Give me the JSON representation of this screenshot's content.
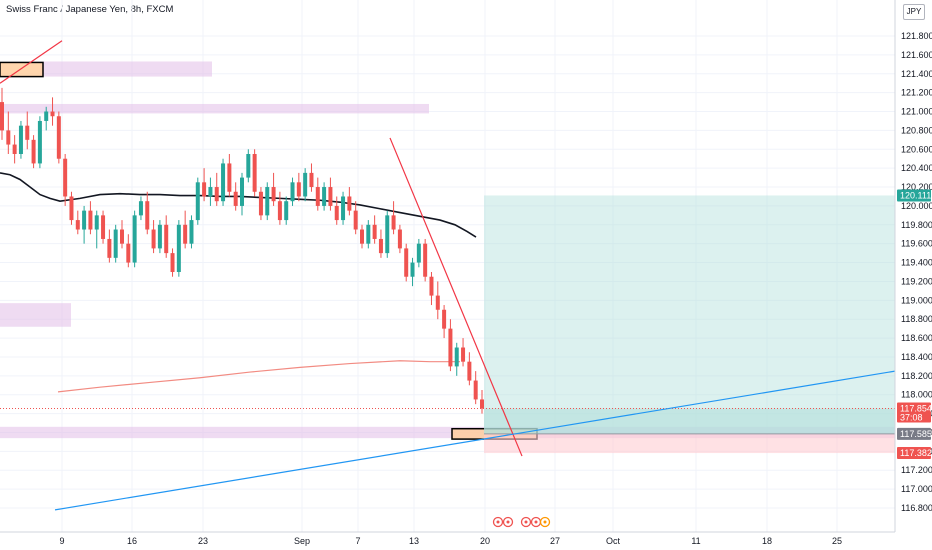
{
  "header": {
    "title": "Swiss Franc / Japanese Yen, 8h, FXCM"
  },
  "currency_badge": "JPY",
  "colors": {
    "up": "#26a69a",
    "down": "#ef5350",
    "ma_long": "#131722",
    "ma_red": "#f28b82",
    "trendline_red": "#f23645",
    "trendline_blue": "#2196f3",
    "zone_purple": "#e1bee7",
    "zone_orange": "#ffcc99",
    "target_zone": "#b2dfdb",
    "stop_zone": "#ffcdd2"
  },
  "chart_data": {
    "type": "candlestick",
    "title": "Swiss Franc / Japanese Yen, 8h, FXCM",
    "ylim": [
      116.7,
      122.0
    ],
    "y_ticks": [
      "121.800",
      "121.600",
      "121.400",
      "121.200",
      "121.000",
      "120.800",
      "120.600",
      "120.400",
      "120.200",
      "120.000",
      "119.800",
      "119.600",
      "119.400",
      "119.200",
      "119.000",
      "118.800",
      "118.600",
      "118.400",
      "118.200",
      "118.000",
      "117.800",
      "117.600",
      "117.400",
      "117.200",
      "117.000",
      "116.800"
    ],
    "x_ticks": [
      "9",
      "16",
      "23",
      "Sep",
      "7",
      "13",
      "20",
      "27",
      "Oct",
      "11",
      "18",
      "25"
    ],
    "price_labels": [
      {
        "text": "120.111",
        "value": 120.111,
        "color": "#26a69a"
      },
      {
        "text": "117.854",
        "value": 117.854,
        "color": "#ef5350",
        "sub": "37:08"
      },
      {
        "text": "117.585",
        "value": 117.585,
        "color": "#787b86"
      },
      {
        "text": "117.382",
        "value": 117.382,
        "color": "#ef5350"
      }
    ],
    "candles": [
      [
        121.1,
        121.25,
        120.7,
        120.8
      ],
      [
        120.8,
        121.0,
        120.55,
        120.65
      ],
      [
        120.65,
        120.75,
        120.45,
        120.55
      ],
      [
        120.55,
        120.9,
        120.5,
        120.85
      ],
      [
        120.85,
        121.0,
        120.6,
        120.7
      ],
      [
        120.7,
        120.75,
        120.4,
        120.45
      ],
      [
        120.45,
        120.95,
        120.4,
        120.9
      ],
      [
        120.9,
        121.05,
        120.8,
        121.0
      ],
      [
        121.0,
        121.15,
        120.85,
        120.95
      ],
      [
        120.95,
        121.0,
        120.45,
        120.5
      ],
      [
        120.5,
        120.55,
        120.0,
        120.1
      ],
      [
        120.1,
        120.15,
        119.8,
        119.85
      ],
      [
        119.85,
        119.95,
        119.7,
        119.75
      ],
      [
        119.75,
        120.0,
        119.6,
        119.95
      ],
      [
        119.95,
        120.05,
        119.7,
        119.75
      ],
      [
        119.75,
        119.95,
        119.55,
        119.9
      ],
      [
        119.9,
        119.95,
        119.6,
        119.65
      ],
      [
        119.65,
        119.75,
        119.4,
        119.45
      ],
      [
        119.45,
        119.8,
        119.4,
        119.75
      ],
      [
        119.75,
        119.85,
        119.55,
        119.6
      ],
      [
        119.6,
        119.7,
        119.35,
        119.4
      ],
      [
        119.4,
        119.95,
        119.35,
        119.9
      ],
      [
        119.9,
        120.1,
        119.85,
        120.05
      ],
      [
        120.05,
        120.15,
        119.7,
        119.75
      ],
      [
        119.75,
        119.85,
        119.5,
        119.55
      ],
      [
        119.55,
        119.85,
        119.5,
        119.8
      ],
      [
        119.8,
        119.9,
        119.45,
        119.5
      ],
      [
        119.5,
        119.55,
        119.25,
        119.3
      ],
      [
        119.3,
        119.85,
        119.25,
        119.8
      ],
      [
        119.8,
        119.95,
        119.55,
        119.6
      ],
      [
        119.6,
        119.9,
        119.55,
        119.85
      ],
      [
        119.85,
        120.3,
        119.8,
        120.25
      ],
      [
        120.25,
        120.4,
        120.05,
        120.1
      ],
      [
        120.1,
        120.3,
        120.0,
        120.2
      ],
      [
        120.2,
        120.35,
        120.0,
        120.05
      ],
      [
        120.05,
        120.5,
        120.0,
        120.45
      ],
      [
        120.45,
        120.55,
        120.1,
        120.15
      ],
      [
        120.15,
        120.25,
        119.95,
        120.0
      ],
      [
        120.0,
        120.35,
        119.9,
        120.3
      ],
      [
        120.3,
        120.6,
        120.25,
        120.55
      ],
      [
        120.55,
        120.6,
        120.1,
        120.15
      ],
      [
        120.15,
        120.2,
        119.85,
        119.9
      ],
      [
        119.9,
        120.25,
        119.85,
        120.2
      ],
      [
        120.2,
        120.35,
        120.0,
        120.05
      ],
      [
        120.05,
        120.15,
        119.8,
        119.85
      ],
      [
        119.85,
        120.1,
        119.8,
        120.05
      ],
      [
        120.05,
        120.3,
        120.0,
        120.25
      ],
      [
        120.25,
        120.35,
        120.05,
        120.1
      ],
      [
        120.1,
        120.4,
        120.05,
        120.35
      ],
      [
        120.35,
        120.45,
        120.15,
        120.2
      ],
      [
        120.2,
        120.3,
        119.95,
        120.0
      ],
      [
        120.0,
        120.25,
        119.95,
        120.2
      ],
      [
        120.2,
        120.3,
        119.95,
        120.0
      ],
      [
        120.0,
        120.1,
        119.8,
        119.85
      ],
      [
        119.85,
        120.15,
        119.8,
        120.1
      ],
      [
        120.1,
        120.2,
        119.9,
        119.95
      ],
      [
        119.95,
        120.05,
        119.7,
        119.75
      ],
      [
        119.75,
        119.8,
        119.55,
        119.6
      ],
      [
        119.6,
        119.85,
        119.55,
        119.8
      ],
      [
        119.8,
        119.9,
        119.6,
        119.65
      ],
      [
        119.65,
        119.75,
        119.45,
        119.5
      ],
      [
        119.5,
        119.95,
        119.45,
        119.9
      ],
      [
        119.9,
        120.05,
        119.7,
        119.75
      ],
      [
        119.75,
        119.8,
        119.5,
        119.55
      ],
      [
        119.55,
        119.6,
        119.2,
        119.25
      ],
      [
        119.25,
        119.45,
        119.15,
        119.4
      ],
      [
        119.4,
        119.65,
        119.35,
        119.6
      ],
      [
        119.6,
        119.65,
        119.2,
        119.25
      ],
      [
        119.25,
        119.3,
        118.95,
        119.05
      ],
      [
        119.05,
        119.2,
        118.8,
        118.9
      ],
      [
        118.9,
        118.95,
        118.6,
        118.7
      ],
      [
        118.7,
        118.8,
        118.25,
        118.3
      ],
      [
        118.3,
        118.55,
        118.2,
        118.5
      ],
      [
        118.5,
        118.6,
        118.3,
        118.35
      ],
      [
        118.35,
        118.45,
        118.1,
        118.15
      ],
      [
        118.15,
        118.25,
        117.9,
        117.95
      ],
      [
        117.95,
        118.05,
        117.8,
        117.854
      ]
    ],
    "ma_long": [
      [
        0,
        120.35
      ],
      [
        10,
        120.33
      ],
      [
        20,
        120.28
      ],
      [
        30,
        120.2
      ],
      [
        40,
        120.12
      ],
      [
        50,
        120.08
      ],
      [
        60,
        120.05
      ],
      [
        80,
        120.08
      ],
      [
        100,
        120.12
      ],
      [
        120,
        120.13
      ],
      [
        140,
        120.12
      ],
      [
        160,
        120.12
      ],
      [
        180,
        120.11
      ],
      [
        200,
        120.11
      ],
      [
        220,
        120.1
      ],
      [
        240,
        120.1
      ],
      [
        260,
        120.09
      ],
      [
        280,
        120.08
      ],
      [
        300,
        120.07
      ],
      [
        320,
        120.06
      ],
      [
        340,
        120.04
      ],
      [
        360,
        120.01
      ],
      [
        380,
        119.97
      ],
      [
        400,
        119.93
      ],
      [
        420,
        119.89
      ],
      [
        440,
        119.85
      ],
      [
        455,
        119.8
      ],
      [
        467,
        119.73
      ],
      [
        476,
        119.67
      ]
    ],
    "ma_red": [
      [
        58,
        118.03
      ],
      [
        100,
        118.08
      ],
      [
        150,
        118.13
      ],
      [
        200,
        118.18
      ],
      [
        250,
        118.24
      ],
      [
        300,
        118.29
      ],
      [
        350,
        118.33
      ],
      [
        400,
        118.36
      ],
      [
        430,
        118.35
      ],
      [
        460,
        118.35
      ]
    ],
    "zones": [
      {
        "kind": "purple",
        "x0": 40,
        "x1": 212,
        "y0": 121.53,
        "y1": 121.37
      },
      {
        "kind": "purple",
        "x0": 0,
        "x1": 429,
        "y0": 121.08,
        "y1": 120.98
      },
      {
        "kind": "purple",
        "x0": 0,
        "x1": 71,
        "y0": 118.97,
        "y1": 118.72
      },
      {
        "kind": "purple",
        "x0": 0,
        "x1": 895,
        "y0": 117.66,
        "y1": 117.54
      },
      {
        "kind": "orange",
        "x0": 0,
        "x1": 43,
        "y0": 121.52,
        "y1": 121.37
      },
      {
        "kind": "orange",
        "x0": 452,
        "x1": 537,
        "y0": 117.64,
        "y1": 117.53
      }
    ],
    "position": {
      "x0": 484,
      "x1": 895,
      "entry": 117.585,
      "target": 120.111,
      "stop": 117.382
    },
    "trendlines": [
      {
        "color": "red",
        "x0": 390,
        "v0": 120.72,
        "x1": 522,
        "v1": 117.35
      },
      {
        "color": "red",
        "x0": 0,
        "v0": 121.3,
        "x1": 62,
        "v1": 121.75
      },
      {
        "color": "blue",
        "x0": 55,
        "v0": 116.78,
        "x1": 895,
        "v1": 118.25
      }
    ]
  }
}
